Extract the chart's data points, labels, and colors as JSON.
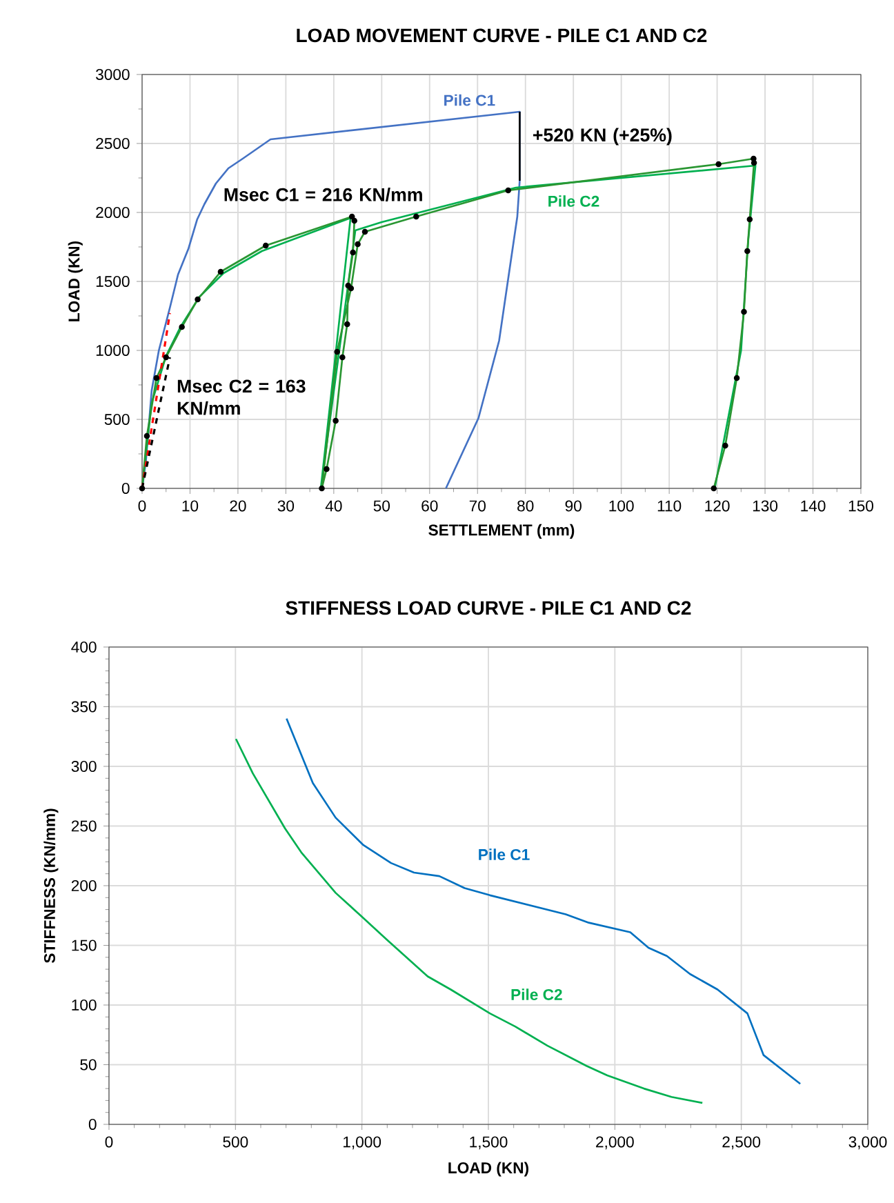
{
  "chart_data": [
    {
      "type": "line",
      "title": "LOAD MOVEMENT CURVE - PILE C1 AND C2",
      "xlabel": "SETTLEMENT  (mm)",
      "ylabel": "LOAD (KN)",
      "xlim": [
        0,
        150
      ],
      "xticks": [
        0,
        10,
        20,
        30,
        40,
        50,
        60,
        70,
        80,
        90,
        100,
        110,
        120,
        130,
        140,
        150
      ],
      "ylim": [
        0,
        3000
      ],
      "yticks": [
        0,
        500,
        1000,
        1500,
        2000,
        2500,
        3000
      ],
      "grid": true,
      "legend": false,
      "series": [
        {
          "name": "Pile C1",
          "color": "#4472c4",
          "x": [
            0,
            0.8,
            2,
            3.5,
            5.8,
            7.5,
            9.7,
            11.5,
            13,
            15.4,
            18,
            21,
            26.8,
            78.8,
            78.8,
            78.3,
            74.5,
            70.2,
            63.4
          ],
          "values": [
            0,
            200,
            710,
            1000,
            1310,
            1550,
            1740,
            1950,
            2060,
            2210,
            2320,
            2390,
            2530,
            2730,
            2230,
            1970,
            1070,
            510,
            0
          ]
        },
        {
          "name": "Pile C2",
          "color": "#00b050",
          "x": [
            0,
            2,
            5,
            8,
            12,
            17,
            25,
            35,
            43.5,
            37.3,
            44.5,
            50,
            78,
            128,
            126.5,
            125,
            119.5
          ],
          "values": [
            0,
            620,
            960,
            1170,
            1390,
            1560,
            1720,
            1850,
            1960,
            0,
            1870,
            1930,
            2180,
            2340,
            1800,
            1000,
            0
          ]
        },
        {
          "color": "#2a9632",
          "marker": "circle",
          "x": [
            0,
            1,
            3,
            5,
            8.3,
            11.6,
            16.4,
            25.8,
            43.8,
            44.3,
            44,
            43,
            42.8,
            41.8,
            40.4,
            38.5,
            37.5,
            40.7,
            43.6,
            45,
            46.5,
            57.2,
            76.4,
            120.3,
            127.6,
            127.7,
            126.8,
            126.3,
            125.6,
            124.1,
            121.7,
            119.3
          ],
          "values": [
            0,
            380,
            800,
            950,
            1170,
            1370,
            1570,
            1760,
            1970,
            1940,
            1710,
            1470,
            1190,
            950,
            490,
            140,
            0,
            990,
            1450,
            1770,
            1860,
            1970,
            2160,
            2350,
            2390,
            2360,
            1950,
            1720,
            1280,
            800,
            310,
            0
          ]
        },
        {
          "color": "#ff0000",
          "line_style": "dashed",
          "x": [
            0,
            5.8
          ],
          "values": [
            0,
            1270
          ]
        },
        {
          "color": "#000000",
          "line_style": "dashed",
          "x": [
            0,
            5.8
          ],
          "values": [
            0,
            950
          ]
        },
        {
          "color": "#000000",
          "x": [
            78.8,
            78.8
          ],
          "values": [
            2730,
            2230
          ]
        }
      ],
      "annotations": [
        "+520 KN (+25%)",
        "Msec C1 = 216 KN/mm",
        "Msec C2 = 163 KN/mm"
      ]
    },
    {
      "type": "line",
      "title": "STIFFNESS LOAD CURVE - PILE C1 AND C2",
      "xlabel": "LOAD  (KN)",
      "ylabel": "STIFFNESS (KN/mm)",
      "xlim": [
        0,
        3000
      ],
      "xticks": [
        0,
        500,
        {
          "value": 1000,
          "label": "1,000"
        },
        {
          "value": 1500,
          "label": "1,500"
        },
        {
          "value": 2000,
          "label": "2,000"
        },
        {
          "value": 2500,
          "label": "2,500"
        },
        {
          "value": 3000,
          "label": "3,000"
        }
      ],
      "ylim": [
        0,
        400
      ],
      "yticks": [
        0,
        50,
        100,
        150,
        200,
        250,
        300,
        350,
        400
      ],
      "grid": true,
      "legend": false,
      "series": [
        {
          "name": "Pile C1",
          "color": "#0070c0",
          "x": [
            702,
            806,
            896,
            1006,
            1115,
            1206,
            1306,
            1406,
            1506,
            1806,
            1897,
            2061,
            2133,
            2206,
            2297,
            2406,
            2524,
            2588,
            2733
          ],
          "values": [
            340,
            286,
            257,
            234,
            219,
            211,
            208,
            198,
            192,
            176,
            169,
            161,
            148,
            141,
            126,
            113,
            93,
            58,
            34
          ]
        },
        {
          "name": "Pile C2",
          "color": "#00b050",
          "x": [
            502,
            569,
            696,
            760,
            896,
            1000,
            1097,
            1260,
            1351,
            1506,
            1606,
            1733,
            1888,
            1970,
            2115,
            2224,
            2346
          ],
          "values": [
            323,
            294,
            248,
            228,
            194,
            174,
            155,
            124,
            113,
            93,
            82,
            66,
            49,
            41,
            30,
            23,
            18
          ]
        }
      ]
    }
  ]
}
